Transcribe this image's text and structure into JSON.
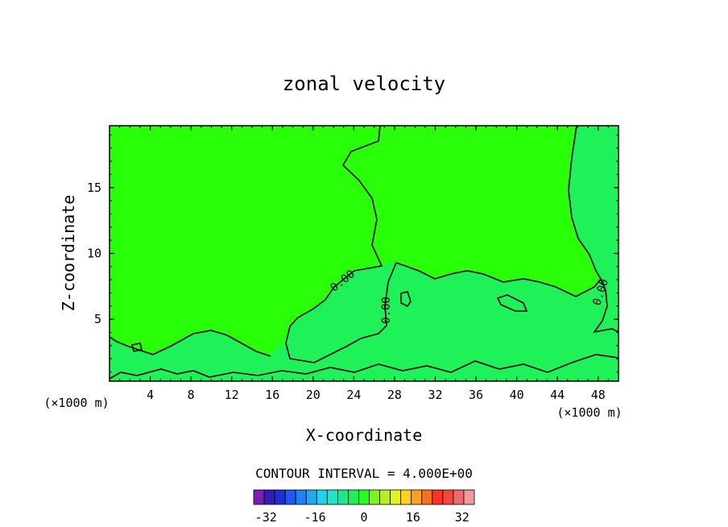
{
  "chart_data": {
    "type": "contour",
    "title": "zonal velocity",
    "xlabel": "X-coordinate",
    "ylabel": "Z-coordinate",
    "x_unit_left": "(×1000 m)",
    "x_unit_right": "(×1000 m)",
    "xlim": [
      0,
      50
    ],
    "ylim": [
      0.3,
      19.7
    ],
    "x_ticks": [
      4,
      8,
      12,
      16,
      20,
      24,
      28,
      32,
      36,
      40,
      44,
      48
    ],
    "y_ticks": [
      5,
      10,
      15
    ],
    "contour_label": "0.00",
    "contour_interval_text": "CONTOUR INTERVAL = 4.000E+00",
    "colorbar": {
      "tick_labels": [
        "-32",
        "-16",
        "0",
        "16",
        "32"
      ],
      "tick_values": [
        -32,
        -16,
        0,
        16,
        32
      ],
      "range": [
        -36,
        36
      ],
      "colors": [
        "#7b1fb0",
        "#3a1ab5",
        "#1f2fd6",
        "#1f57ef",
        "#1f82f4",
        "#22a8f0",
        "#22d0ee",
        "#1fe6c9",
        "#1ee88f",
        "#1ff057",
        "#22ff1e",
        "#7cf21e",
        "#b8ee1e",
        "#e8f01e",
        "#ffd21e",
        "#ffa21e",
        "#ff6e1e",
        "#ff321e",
        "#f2463f",
        "#ef6a6a",
        "#f29a9a"
      ]
    },
    "regions": [
      {
        "name": "weak-positive",
        "color": "#2aff0a"
      },
      {
        "name": "weak-negative",
        "color": "#1ff259"
      }
    ]
  }
}
